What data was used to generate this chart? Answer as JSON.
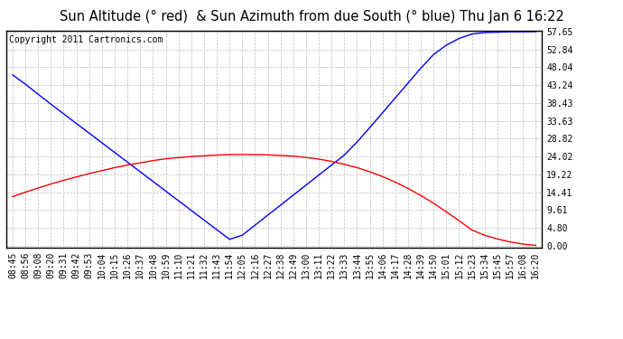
{
  "title": "Sun Altitude (° red)  & Sun Azimuth from due South (° blue) Thu Jan 6 16:22",
  "copyright_text": "Copyright 2011 Cartronics.com",
  "yticks": [
    0.0,
    4.8,
    9.61,
    14.41,
    19.22,
    24.02,
    28.82,
    33.63,
    38.43,
    43.24,
    48.04,
    52.84,
    57.65
  ],
  "xtick_labels": [
    "08:45",
    "08:56",
    "09:08",
    "09:20",
    "09:31",
    "09:42",
    "09:53",
    "10:04",
    "10:15",
    "10:26",
    "10:37",
    "10:48",
    "10:59",
    "11:10",
    "11:21",
    "11:32",
    "11:43",
    "11:54",
    "12:05",
    "12:16",
    "12:27",
    "12:38",
    "12:49",
    "13:00",
    "13:11",
    "13:22",
    "13:33",
    "13:44",
    "13:55",
    "14:06",
    "14:17",
    "14:28",
    "14:39",
    "14:50",
    "15:01",
    "15:12",
    "15:23",
    "15:34",
    "15:45",
    "15:57",
    "16:08",
    "16:20"
  ],
  "blue_y": [
    46.0,
    43.5,
    40.8,
    38.1,
    35.5,
    32.9,
    30.3,
    27.7,
    25.1,
    22.5,
    19.9,
    17.3,
    14.7,
    12.1,
    9.5,
    6.9,
    4.3,
    1.7,
    2.8,
    5.5,
    8.2,
    10.9,
    13.6,
    16.3,
    19.0,
    21.7,
    24.4,
    27.9,
    31.8,
    35.8,
    39.8,
    43.8,
    47.8,
    51.5,
    54.0,
    55.8,
    57.0,
    57.4,
    57.5,
    57.6,
    57.62,
    57.65
  ],
  "red_y": [
    13.2,
    14.4,
    15.5,
    16.6,
    17.6,
    18.5,
    19.4,
    20.2,
    21.0,
    21.7,
    22.3,
    22.9,
    23.4,
    23.7,
    24.0,
    24.2,
    24.4,
    24.5,
    24.55,
    24.5,
    24.45,
    24.3,
    24.1,
    23.75,
    23.3,
    22.7,
    21.9,
    21.0,
    19.9,
    18.6,
    17.1,
    15.4,
    13.5,
    11.4,
    9.1,
    6.7,
    4.2,
    2.8,
    1.8,
    1.0,
    0.4,
    0.05
  ],
  "bg_color": "#FFFFFF",
  "plot_bg_color": "#FFFFFF",
  "grid_color": "#BBBBBB",
  "blue_color": "#0000FF",
  "red_color": "#FF0000",
  "title_fontsize": 10.5,
  "tick_fontsize": 7,
  "copyright_fontsize": 7,
  "ymax": 57.65,
  "ymin": 0.0,
  "line_width": 1.0
}
